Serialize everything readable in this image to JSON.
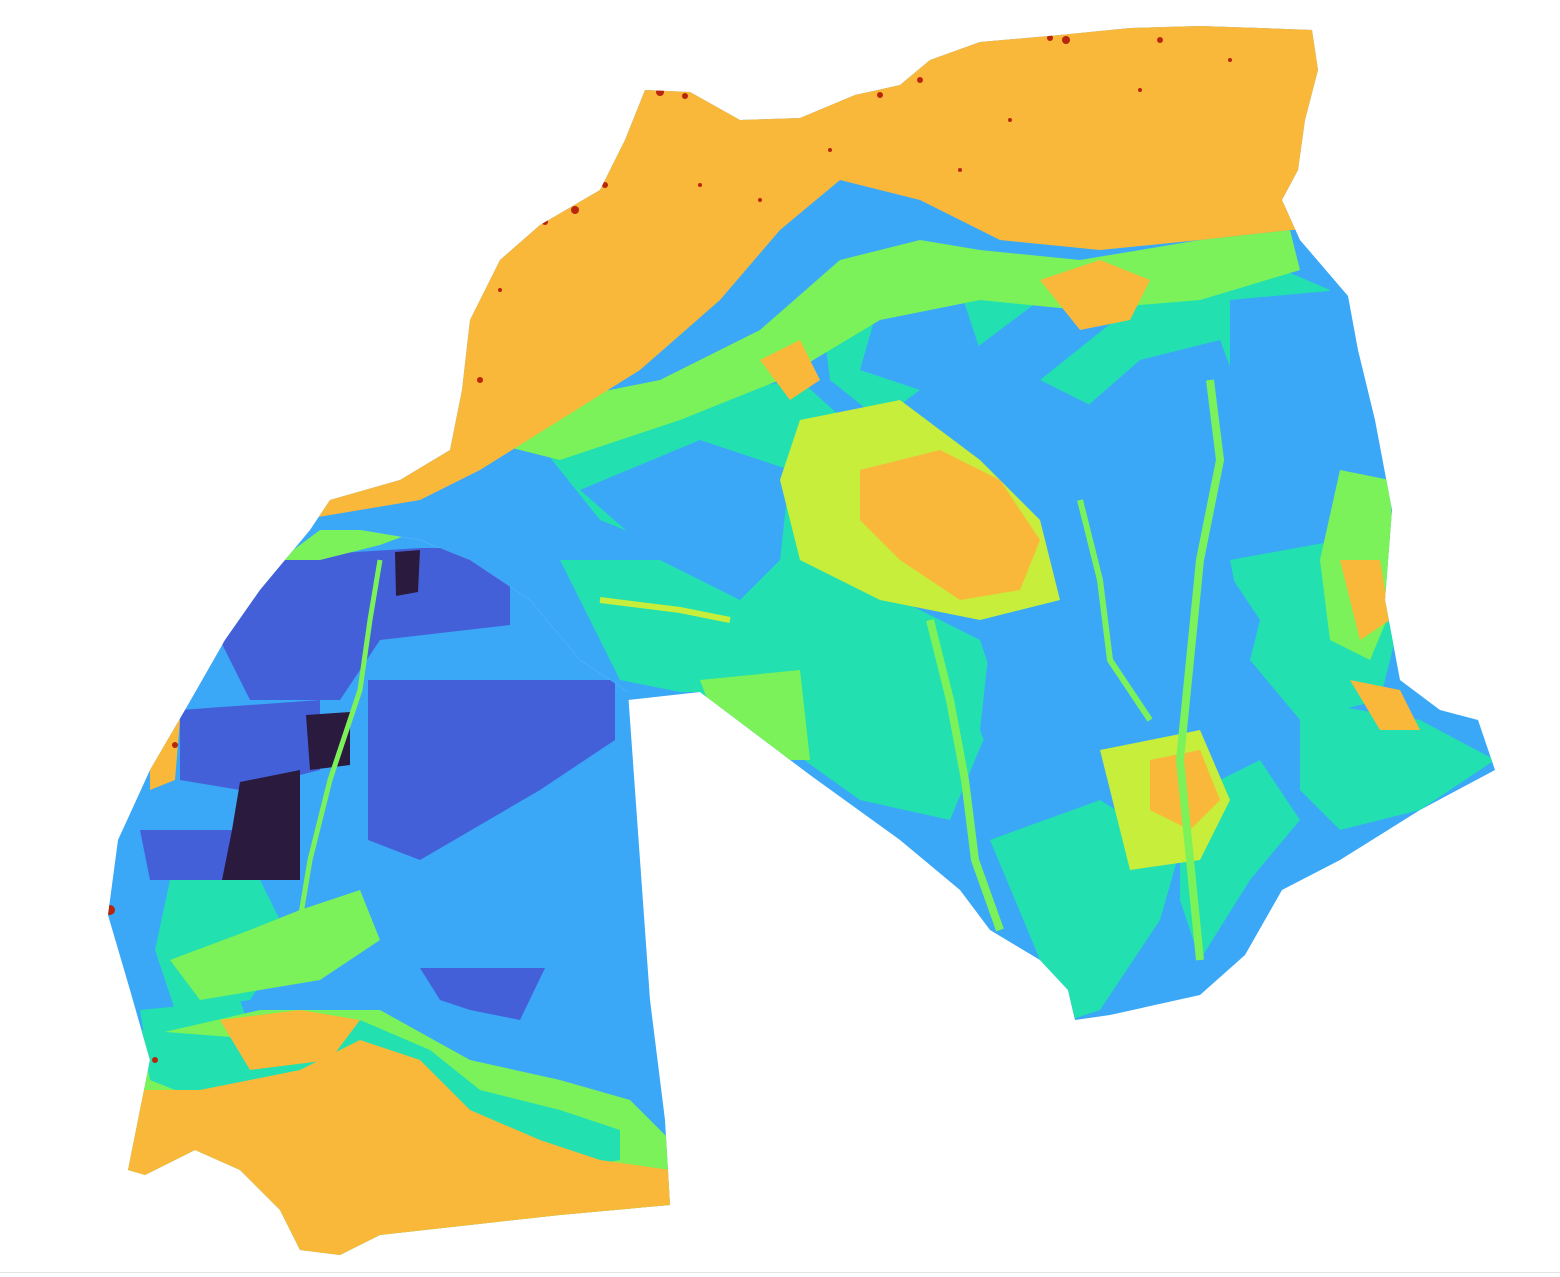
{
  "map": {
    "type": "raster-choropleth",
    "palette": {
      "darkest": "#2a1a3e",
      "indigo": "#4460d8",
      "blue": "#3aa8f6",
      "teal": "#22e0b0",
      "green": "#7cf25a",
      "yellow": "#c6ee3a",
      "orange": "#fab83a",
      "red": "#b8260e"
    },
    "legend": "none",
    "labels": "none",
    "background": "#ffffff"
  }
}
